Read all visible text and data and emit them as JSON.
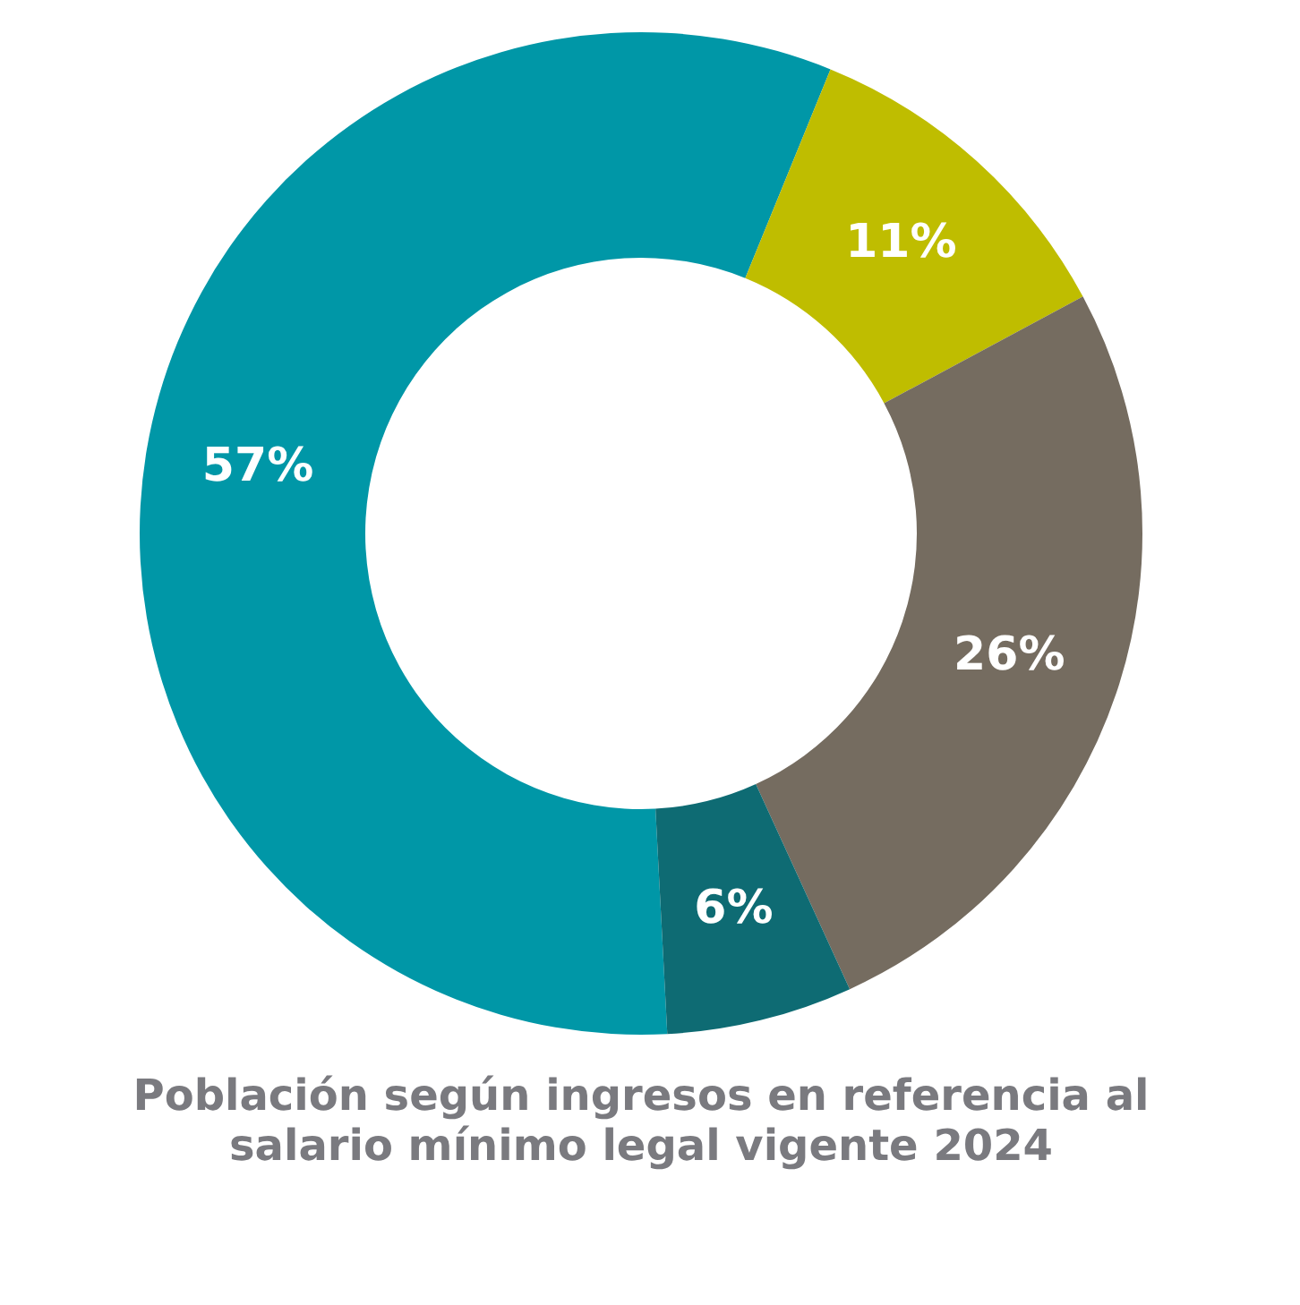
{
  "chart_data": {
    "type": "donut",
    "title": "Población según ingresos en referencia al salario mínimo legal vigente 2024",
    "categories": [
      null,
      null,
      null,
      null
    ],
    "values": [
      57,
      11,
      26,
      6
    ],
    "colors": [
      "#0097a7",
      "#bfbd00",
      "#756c60",
      "#0e6b73"
    ],
    "value_labels": [
      "57%",
      "11%",
      "26%",
      "6%"
    ],
    "legend": false
  }
}
